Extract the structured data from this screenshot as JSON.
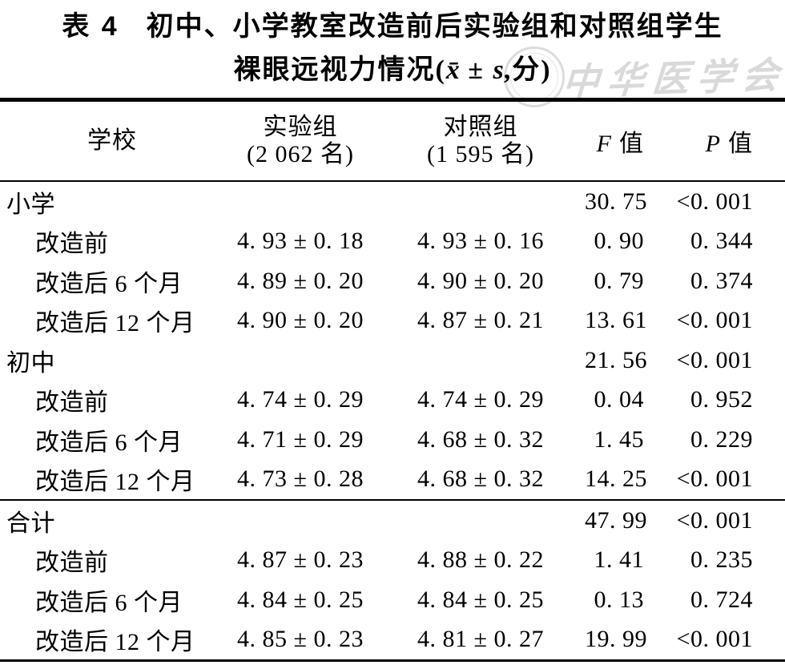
{
  "title": {
    "table_label": "表 4",
    "line1": "初中、小学教室改造前后实验组和对照组学生",
    "line2_pre": "裸眼远视力情况(",
    "xbar": "x̄",
    "pm": " ± ",
    "s": "s",
    "line2_post": ",分)"
  },
  "watermark": {
    "text": "中华医学会"
  },
  "header": {
    "school": "学校",
    "experimental_line1": "实验组",
    "experimental_line2": "(2 062 名)",
    "control_line1": "对照组",
    "control_line2": "(1 595 名)",
    "f_symbol": "F",
    "f_suffix": "值",
    "p_symbol": "P",
    "p_suffix": "值"
  },
  "rows": [
    {
      "label": "小学",
      "exp": "",
      "ctrl": "",
      "f": "30. 75",
      "p": "<0. 001"
    },
    {
      "label": "改造前",
      "exp": "4. 93 ± 0. 18",
      "ctrl": "4. 93 ± 0. 16",
      "f": "0. 90",
      "p": "0. 344"
    },
    {
      "label": "改造后 6 个月",
      "exp": "4. 89 ± 0. 20",
      "ctrl": "4. 90 ± 0. 20",
      "f": "0. 79",
      "p": "0. 374"
    },
    {
      "label": "改造后 12 个月",
      "exp": "4. 90 ± 0. 20",
      "ctrl": "4. 87 ± 0. 21",
      "f": "13. 61",
      "p": "<0. 001"
    },
    {
      "label": "初中",
      "exp": "",
      "ctrl": "",
      "f": "21. 56",
      "p": "<0. 001"
    },
    {
      "label": "改造前",
      "exp": "4. 74 ± 0. 29",
      "ctrl": "4. 74 ± 0. 29",
      "f": "0. 04",
      "p": "0. 952"
    },
    {
      "label": "改造后 6 个月",
      "exp": "4. 71 ± 0. 29",
      "ctrl": "4. 68 ± 0. 32",
      "f": "1. 45",
      "p": "0. 229"
    },
    {
      "label": "改造后 12 个月",
      "exp": "4. 73 ± 0. 28",
      "ctrl": "4. 68 ± 0. 32",
      "f": "14. 25",
      "p": "<0. 001"
    },
    {
      "label": "合计",
      "exp": "",
      "ctrl": "",
      "f": "47. 99",
      "p": "<0. 001"
    },
    {
      "label": "改造前",
      "exp": "4. 87 ± 0. 23",
      "ctrl": "4. 88 ± 0. 22",
      "f": "1. 41",
      "p": "0. 235"
    },
    {
      "label": "改造后 6 个月",
      "exp": "4. 84 ± 0. 25",
      "ctrl": "4. 84 ± 0. 25",
      "f": "0. 13",
      "p": "0. 724"
    },
    {
      "label": "改造后 12 个月",
      "exp": "4. 85 ± 0. 23",
      "ctrl": "4. 81 ± 0. 27",
      "f": "19. 99",
      "p": "<0. 001"
    }
  ]
}
